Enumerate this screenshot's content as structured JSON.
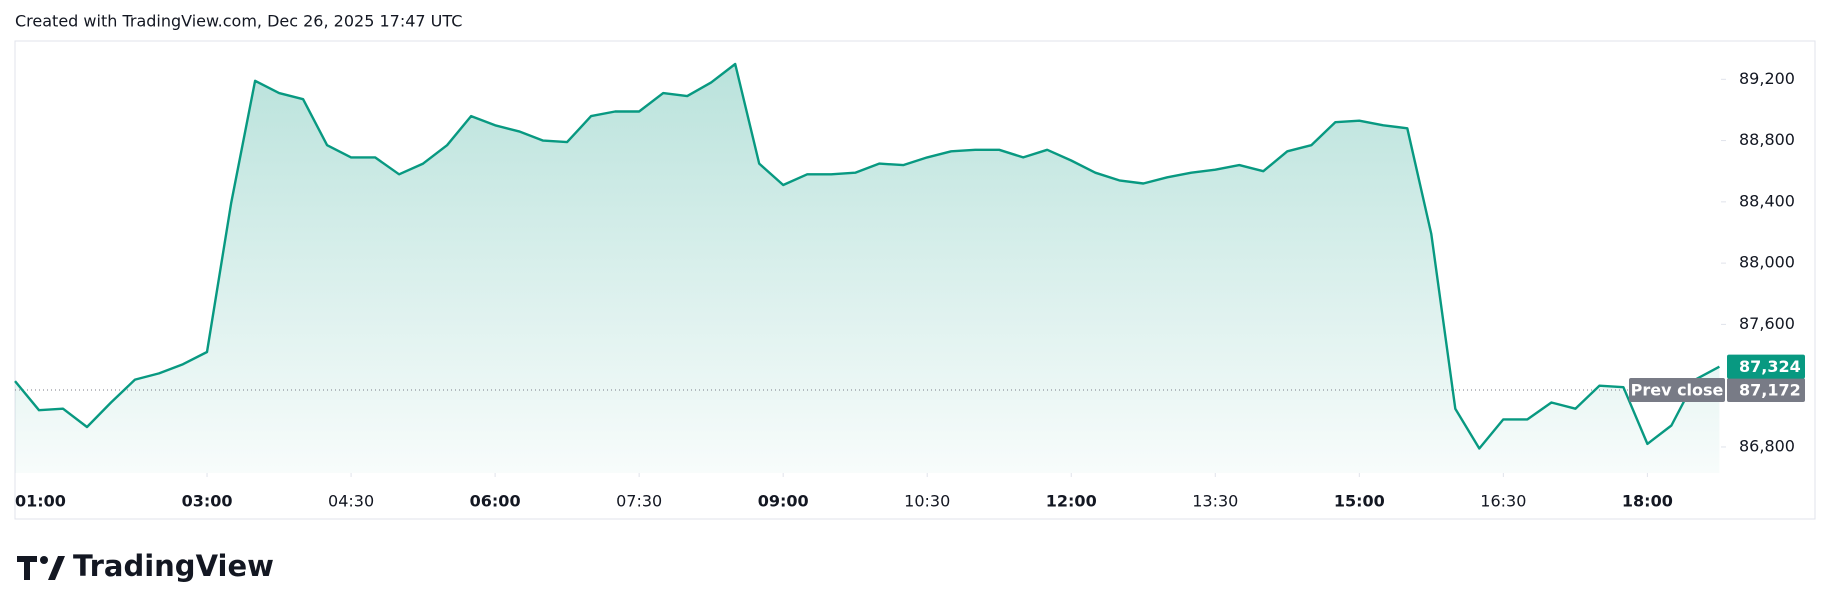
{
  "created_note": "Created with TradingView.com, Dec 26, 2025 17:47 UTC",
  "brand": "TradingView",
  "chart_data": {
    "type": "area",
    "x": [
      "01:00",
      "01:15",
      "01:30",
      "01:45",
      "02:00",
      "02:15",
      "02:30",
      "02:45",
      "03:00",
      "03:15",
      "03:30",
      "03:45",
      "04:00",
      "04:15",
      "04:30",
      "04:45",
      "05:00",
      "05:15",
      "05:30",
      "05:45",
      "06:00",
      "06:15",
      "06:30",
      "06:45",
      "07:00",
      "07:15",
      "07:30",
      "07:45",
      "08:00",
      "08:15",
      "08:30",
      "08:45",
      "09:00",
      "09:15",
      "09:30",
      "09:45",
      "10:00",
      "10:15",
      "10:30",
      "10:45",
      "11:00",
      "11:15",
      "11:30",
      "11:45",
      "12:00",
      "12:15",
      "12:30",
      "12:45",
      "13:00",
      "13:15",
      "13:30",
      "13:45",
      "14:00",
      "14:15",
      "14:30",
      "14:45",
      "15:00",
      "15:15",
      "15:30",
      "15:45",
      "16:00",
      "16:15",
      "16:30",
      "16:45",
      "17:00",
      "17:15",
      "17:30",
      "17:45",
      "18:00",
      "18:15",
      "18:30",
      "18:45"
    ],
    "values": [
      87230,
      87040,
      87050,
      86930,
      87090,
      87240,
      87280,
      87340,
      87420,
      88390,
      89190,
      89110,
      89070,
      88770,
      88690,
      88690,
      88580,
      88650,
      88770,
      88960,
      88900,
      88860,
      88800,
      88790,
      88960,
      88990,
      88990,
      89110,
      89090,
      89180,
      89300,
      88650,
      88510,
      88580,
      88580,
      88590,
      88650,
      88640,
      88690,
      88730,
      88740,
      88740,
      88690,
      88740,
      88670,
      88590,
      88540,
      88520,
      88560,
      88590,
      88610,
      88640,
      88600,
      88730,
      88770,
      88920,
      88930,
      88900,
      88880,
      88190,
      87050,
      86790,
      86980,
      86980,
      87090,
      87050,
      87200,
      87190,
      86820,
      86940,
      87240,
      87324
    ],
    "value_labels": {
      "last": "87,324"
    },
    "color": "#089981",
    "prev_close": {
      "label": "Prev close",
      "value": 87172,
      "value_label": "87,172"
    },
    "xlim": [
      "01:00",
      "18:46"
    ],
    "xticks": [
      "01:00",
      "03:00",
      "04:30",
      "06:00",
      "07:30",
      "09:00",
      "10:30",
      "12:00",
      "13:30",
      "15:00",
      "16:30",
      "18:00"
    ],
    "ylim": [
      86630,
      89450
    ],
    "yticks": [
      {
        "value": 86800,
        "label": "86,800"
      },
      {
        "value": 87600,
        "label": "87,600"
      },
      {
        "value": 88000,
        "label": "88,000"
      },
      {
        "value": 88400,
        "label": "88,400"
      },
      {
        "value": 88800,
        "label": "88,800"
      },
      {
        "value": 89200,
        "label": "89,200"
      }
    ],
    "grid": false
  }
}
